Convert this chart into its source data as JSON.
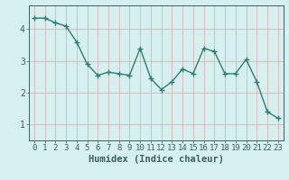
{
  "x": [
    0,
    1,
    2,
    3,
    4,
    5,
    6,
    7,
    8,
    9,
    10,
    11,
    12,
    13,
    14,
    15,
    16,
    17,
    18,
    19,
    20,
    21,
    22,
    23
  ],
  "y": [
    4.35,
    4.35,
    4.2,
    4.1,
    3.6,
    2.9,
    2.55,
    2.65,
    2.6,
    2.55,
    3.4,
    2.45,
    2.1,
    2.35,
    2.75,
    2.6,
    3.4,
    3.3,
    2.6,
    2.6,
    3.05,
    2.35,
    1.4,
    1.2
  ],
  "line_color": "#2e7d6e",
  "marker": "+",
  "marker_size": 4,
  "background_color": "#d6f0f0",
  "grid_color": "#d8a8a8",
  "xlabel": "Humidex (Indice chaleur)",
  "xlim": [
    -0.5,
    23.5
  ],
  "ylim": [
    0.5,
    4.75
  ],
  "yticks": [
    1,
    2,
    3,
    4
  ],
  "xticks": [
    0,
    1,
    2,
    3,
    4,
    5,
    6,
    7,
    8,
    9,
    10,
    11,
    12,
    13,
    14,
    15,
    16,
    17,
    18,
    19,
    20,
    21,
    22,
    23
  ],
  "tick_fontsize": 6.5,
  "xlabel_fontsize": 7.5,
  "axis_color": "#3a6060",
  "linewidth": 1.0
}
